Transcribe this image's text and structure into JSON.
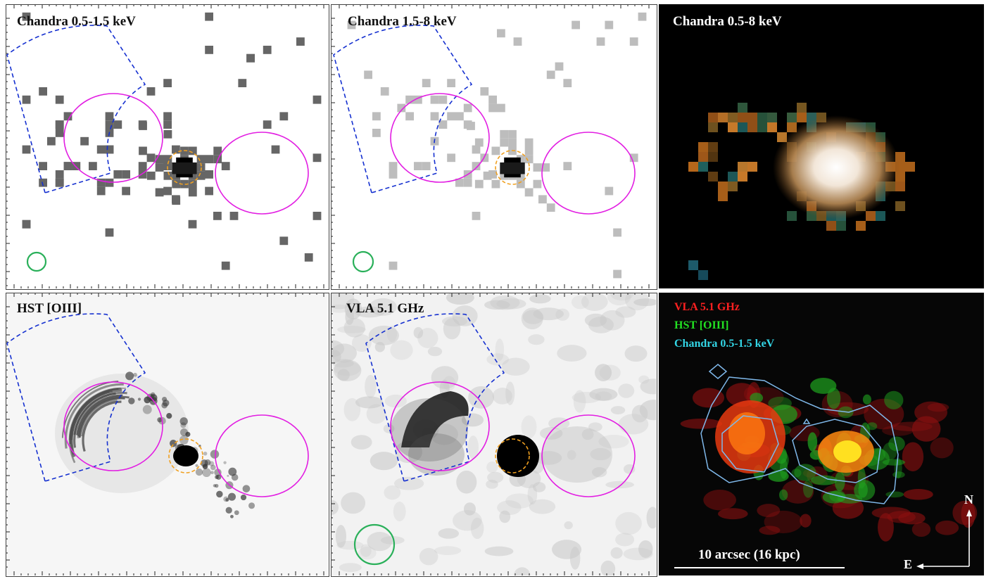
{
  "panels": {
    "p1": {
      "label": "Chandra 0.5-1.5 keV"
    },
    "p2": {
      "label": "Chandra 1.5-8 keV"
    },
    "p3": {
      "label": "Chandra 0.5-8 keV"
    },
    "p4": {
      "label": "HST [OIII]"
    },
    "p5": {
      "label": "VLA 5.1 GHz"
    }
  },
  "composite": {
    "legend": [
      {
        "text": "VLA 5.1 GHz",
        "color": "#ff2020"
      },
      {
        "text": "HST [OIII]",
        "color": "#22e022"
      },
      {
        "text": "Chandra 0.5-1.5 keV",
        "color": "#33d6e6"
      }
    ],
    "scalebar": "10 arcsec (16 kpc)",
    "compass_n": "N",
    "compass_e": "E"
  },
  "colors": {
    "sector": "#1530d0",
    "ellipse": "#e21ee2",
    "nucleus": "#f0a020",
    "beam": "#2ab05a",
    "contour": "#7fb8ea"
  }
}
